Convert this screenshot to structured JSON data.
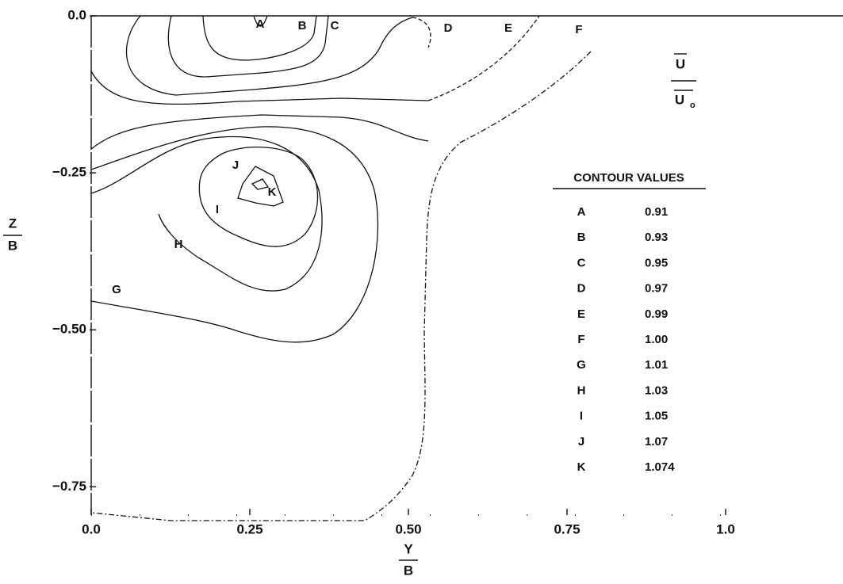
{
  "chart_data": {
    "type": "contour",
    "xlabel": {
      "numerator": "Y",
      "denominator": "B"
    },
    "ylabel": {
      "numerator": "Z",
      "denominator": "B"
    },
    "quantity": {
      "numerator": "U",
      "denominator": "U",
      "subscript": "o"
    },
    "legend_title": "CONTOUR VALUES",
    "xlim": [
      0,
      1.185
    ],
    "ylim": [
      -0.795,
      0
    ],
    "xticks": [
      {
        "value": 0,
        "label": "0.0"
      },
      0.25,
      {
        "value": 0.5,
        "label": "0.50"
      },
      0.75,
      {
        "value": 1,
        "label": "1.0"
      }
    ],
    "yticks": [
      {
        "value": 0,
        "label": "0.0"
      },
      {
        "value": -0.25,
        "label": "−0.25"
      },
      {
        "value": -0.5,
        "label": "−0.50"
      },
      {
        "value": -0.75,
        "label": "−0.75"
      }
    ],
    "grid": false,
    "contours": {
      "labels": [
        "A",
        "B",
        "C",
        "D",
        "E",
        "F",
        "G",
        "H",
        "I",
        "J",
        "K"
      ],
      "values": [
        0.91,
        0.93,
        0.95,
        0.97,
        0.99,
        1.0,
        1.01,
        1.03,
        1.05,
        1.07,
        1.074
      ],
      "value_labels": [
        "0.91",
        "0.93",
        "0.95",
        "0.97",
        "0.99",
        "1.00",
        "1.01",
        "1.03",
        "1.05",
        "1.07",
        "1.074"
      ]
    }
  }
}
